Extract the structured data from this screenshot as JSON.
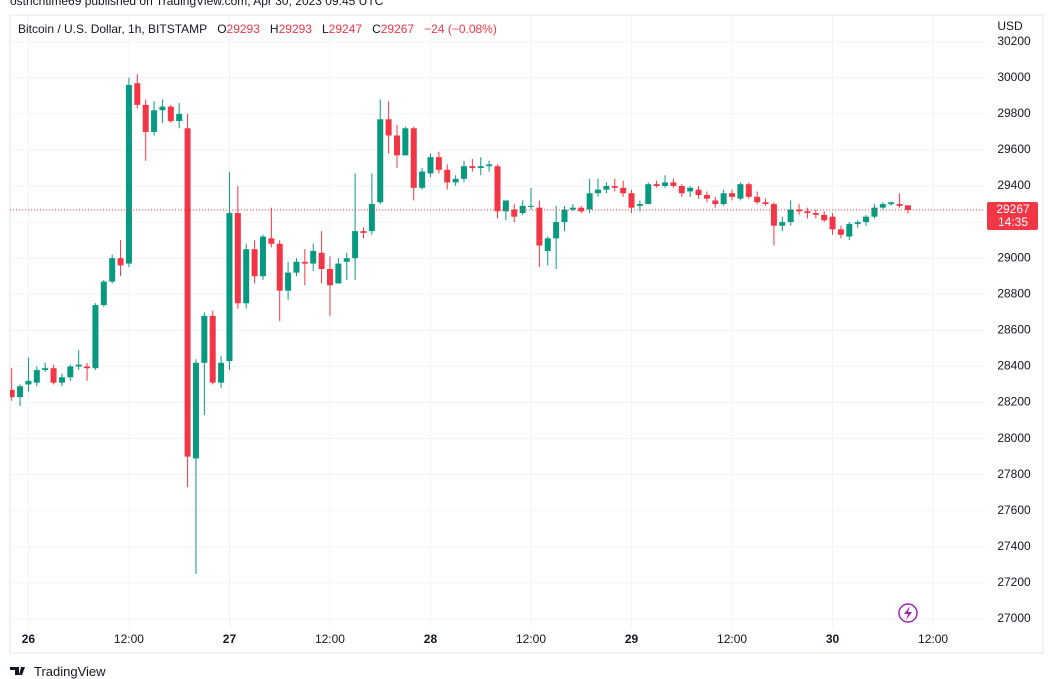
{
  "attribution": "ostrichtime69 published on TradingView.com, Apr 30, 2023 09:45 UTC",
  "brand": "TradingView",
  "chart_data": {
    "type": "candlestick",
    "title": "Bitcoin / U.S. Dollar, 1h, BITSTAMP",
    "ohlc_labels": [
      "O",
      "H",
      "L",
      "C"
    ],
    "change_label": "−24 (−0.08%)",
    "currency": "USD",
    "countdown": "14:35",
    "up_color": "#089981",
    "down_color": "#f23645",
    "grid": true,
    "xlim": [
      -2.2,
      114.2
    ],
    "xticks": [
      {
        "value": 0,
        "label": "26"
      },
      {
        "value": 12,
        "label": "12:00"
      },
      {
        "value": 24,
        "label": "27"
      },
      {
        "value": 36,
        "label": "12:00"
      },
      {
        "value": 48,
        "label": "28"
      },
      {
        "value": 60,
        "label": "12:00"
      },
      {
        "value": 72,
        "label": "29"
      },
      {
        "value": 84,
        "label": "12:00"
      },
      {
        "value": 96,
        "label": "30"
      },
      {
        "value": 108,
        "label": "12:00"
      }
    ],
    "ylim": [
      26950,
      30348
    ],
    "yticks": [
      27000,
      27200,
      27400,
      27600,
      27800,
      28000,
      28200,
      28400,
      28600,
      28800,
      29000,
      29200,
      29400,
      29600,
      29800,
      30000,
      30200
    ],
    "x": [
      -2,
      -1,
      0,
      1,
      2,
      3,
      4,
      5,
      6,
      7,
      8,
      9,
      10,
      11,
      12,
      13,
      14,
      15,
      16,
      17,
      18,
      19,
      20,
      21,
      22,
      23,
      24,
      25,
      26,
      27,
      28,
      29,
      30,
      31,
      32,
      33,
      34,
      35,
      36,
      37,
      38,
      39,
      40,
      41,
      42,
      43,
      44,
      45,
      46,
      47,
      48,
      49,
      50,
      51,
      52,
      53,
      54,
      55,
      56,
      57,
      58,
      59,
      60,
      61,
      62,
      63,
      64,
      65,
      66,
      67,
      68,
      69,
      70,
      71,
      72,
      73,
      74,
      75,
      76,
      77,
      78,
      79,
      80,
      81,
      82,
      83,
      84,
      85,
      86,
      87,
      88,
      89,
      90,
      91,
      92,
      93,
      94,
      95,
      96,
      97,
      98,
      99,
      100,
      101,
      102,
      103,
      104,
      105
    ],
    "open": [
      28270,
      28230,
      28300,
      28310,
      28380,
      28390,
      28310,
      28340,
      28400,
      28400,
      28390,
      28740,
      28870,
      29000,
      28970,
      29970,
      29850,
      29700,
      29820,
      29840,
      29760,
      29720,
      27890,
      28420,
      28680,
      28310,
      28430,
      29250,
      28750,
      29050,
      28900,
      29110,
      29080,
      28820,
      28920,
      28980,
      28970,
      29030,
      28940,
      28860,
      28980,
      29000,
      29150,
      29150,
      29310,
      29770,
      29680,
      29570,
      29720,
      29390,
      29470,
      29560,
      29490,
      29420,
      29440,
      29510,
      29500,
      29510,
      29510,
      29260,
      29270,
      29250,
      29290,
      29280,
      29040,
      29110,
      29200,
      29270,
      29280,
      29270,
      29360,
      29380,
      29400,
      29390,
      29360,
      29290,
      29300,
      29410,
      29400,
      29420,
      29400,
      29370,
      29380,
      29350,
      29320,
      29300,
      29360,
      29330,
      29410,
      29340,
      29310,
      29300,
      29180,
      29200,
      29270,
      29260,
      29250,
      29240,
      29230,
      29160,
      29120,
      29190,
      29200,
      29230,
      29280,
      29300,
      29300,
      29293
    ],
    "high": [
      28390,
      28300,
      28450,
      28400,
      28420,
      28410,
      28360,
      28410,
      28490,
      28420,
      28750,
      28880,
      29020,
      29100,
      30000,
      30020,
      29880,
      29870,
      29880,
      29850,
      29860,
      29800,
      28440,
      28700,
      28710,
      28460,
      29480,
      29400,
      29080,
      29100,
      29130,
      29280,
      29100,
      28980,
      29000,
      29050,
      29080,
      29150,
      29010,
      29000,
      29030,
      29470,
      29170,
      29470,
      29880,
      29870,
      29740,
      29730,
      29730,
      29500,
      29580,
      29590,
      29520,
      29460,
      29540,
      29550,
      29560,
      29540,
      29520,
      29320,
      29300,
      29320,
      29390,
      29320,
      29120,
      29290,
      29290,
      29300,
      29290,
      29440,
      29440,
      29420,
      29440,
      29430,
      29380,
      29320,
      29420,
      29430,
      29460,
      29440,
      29410,
      29400,
      29400,
      29370,
      29340,
      29380,
      29380,
      29420,
      29420,
      29370,
      29330,
      29310,
      29230,
      29320,
      29300,
      29280,
      29270,
      29260,
      29250,
      29180,
      29200,
      29210,
      29240,
      29300,
      29310,
      29310,
      29360,
      29293
    ],
    "low": [
      28210,
      28180,
      28260,
      28290,
      28370,
      28300,
      28290,
      28320,
      28380,
      28320,
      28380,
      28730,
      28860,
      28900,
      28950,
      29830,
      29540,
      29680,
      29750,
      29750,
      29720,
      27730,
      27250,
      28130,
      28300,
      28280,
      28380,
      28720,
      28720,
      28860,
      28880,
      29060,
      28650,
      28770,
      28900,
      28850,
      28930,
      28860,
      28680,
      28860,
      28880,
      28880,
      29110,
      29130,
      29300,
      29580,
      29500,
      29570,
      29320,
      29380,
      29450,
      29470,
      29380,
      29400,
      29420,
      29480,
      29460,
      29480,
      29220,
      29210,
      29200,
      29240,
      29270,
      28950,
      28960,
      28940,
      29150,
      29260,
      29250,
      29250,
      29340,
      29360,
      29370,
      29340,
      29250,
      29260,
      29300,
      29390,
      29390,
      29390,
      29340,
      29340,
      29330,
      29310,
      29280,
      29290,
      29320,
      29320,
      29330,
      29300,
      29290,
      29070,
      29150,
      29180,
      29240,
      29220,
      29220,
      29200,
      29130,
      29110,
      29100,
      29170,
      29180,
      29220,
      29270,
      29290,
      29280,
      29247
    ],
    "close": [
      28230,
      28290,
      28320,
      28380,
      28390,
      28310,
      28340,
      28400,
      28410,
      28390,
      28740,
      28870,
      29000,
      28960,
      29960,
      29850,
      29700,
      29820,
      29840,
      29760,
      29800,
      27900,
      28420,
      28680,
      28310,
      28420,
      29250,
      28750,
      29050,
      28900,
      29120,
      29080,
      28820,
      28920,
      28980,
      28970,
      29040,
      28940,
      28850,
      28970,
      29000,
      29150,
      29140,
      29300,
      29770,
      29680,
      29570,
      29720,
      29390,
      29480,
      29560,
      29490,
      29420,
      29440,
      29510,
      29500,
      29510,
      29520,
      29260,
      29320,
      29230,
      29290,
      29290,
      29070,
      29110,
      29200,
      29270,
      29280,
      29260,
      29360,
      29380,
      29400,
      29390,
      29360,
      29280,
      29300,
      29410,
      29400,
      29420,
      29400,
      29360,
      29390,
      29350,
      29330,
      29300,
      29360,
      29340,
      29410,
      29340,
      29310,
      29300,
      29180,
      29200,
      29270,
      29260,
      29250,
      29240,
      29210,
      29160,
      29130,
      29190,
      29200,
      29230,
      29280,
      29300,
      29310,
      29290,
      29267
    ]
  }
}
